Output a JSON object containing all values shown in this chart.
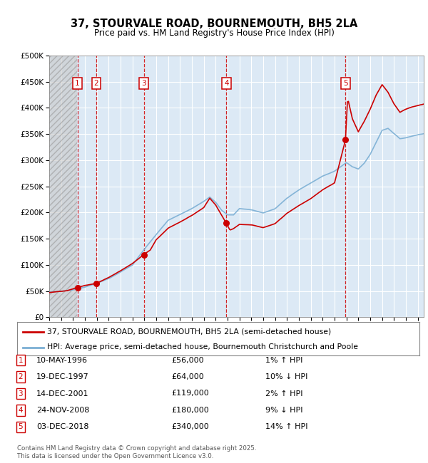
{
  "title": "37, STOURVALE ROAD, BOURNEMOUTH, BH5 2LA",
  "subtitle": "Price paid vs. HM Land Registry's House Price Index (HPI)",
  "ylim": [
    0,
    500000
  ],
  "yticks": [
    0,
    50000,
    100000,
    150000,
    200000,
    250000,
    300000,
    350000,
    400000,
    450000,
    500000
  ],
  "ytick_labels": [
    "£0",
    "£50K",
    "£100K",
    "£150K",
    "£200K",
    "£250K",
    "£300K",
    "£350K",
    "£400K",
    "£450K",
    "£500K"
  ],
  "xlim_start": 1994.0,
  "xlim_end": 2025.5,
  "background_color": "#ffffff",
  "plot_bg_color": "#dce9f5",
  "grid_color": "#ffffff",
  "transactions": [
    {
      "num": 1,
      "date_str": "10-MAY-1996",
      "year": 1996.37,
      "price": 56000,
      "hpi_pct": "1% ↑ HPI"
    },
    {
      "num": 2,
      "date_str": "19-DEC-1997",
      "year": 1997.96,
      "price": 64000,
      "hpi_pct": "10% ↓ HPI"
    },
    {
      "num": 3,
      "date_str": "14-DEC-2001",
      "year": 2001.95,
      "price": 119000,
      "hpi_pct": "2% ↑ HPI"
    },
    {
      "num": 4,
      "date_str": "24-NOV-2008",
      "year": 2008.9,
      "price": 180000,
      "hpi_pct": "9% ↓ HPI"
    },
    {
      "num": 5,
      "date_str": "03-DEC-2018",
      "year": 2018.92,
      "price": 340000,
      "hpi_pct": "14% ↑ HPI"
    }
  ],
  "red_line_color": "#cc0000",
  "blue_line_color": "#7bafd4",
  "vline_color": "#cc0000",
  "label_box_color": "#cc0000",
  "legend_red_label": "37, STOURVALE ROAD, BOURNEMOUTH, BH5 2LA (semi-detached house)",
  "legend_blue_label": "HPI: Average price, semi-detached house, Bournemouth Christchurch and Poole",
  "footer": "Contains HM Land Registry data © Crown copyright and database right 2025.\nThis data is licensed under the Open Government Licence v3.0.",
  "hatch_end_year": 1996.37
}
